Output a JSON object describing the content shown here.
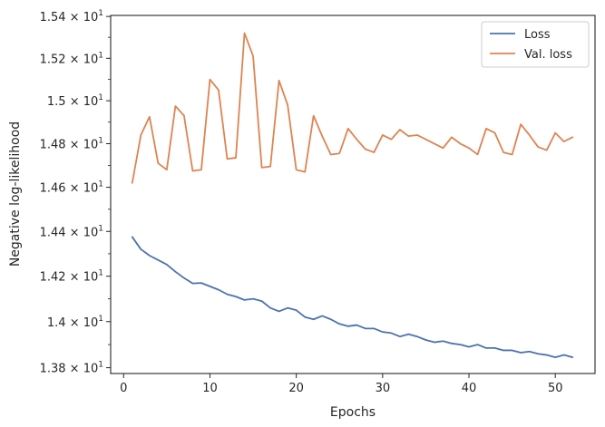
{
  "chart_data": {
    "type": "line",
    "title": "",
    "xlabel": "Epochs",
    "ylabel": "Negative log-likelihood",
    "xlim": [
      -1.5,
      54.6
    ],
    "ylim": [
      13.775,
      15.405
    ],
    "yscale": "log",
    "grid": false,
    "legend_position": "top-right",
    "x_ticks": [
      {
        "value": 0,
        "label": "0"
      },
      {
        "value": 10,
        "label": "10"
      },
      {
        "value": 20,
        "label": "20"
      },
      {
        "value": 30,
        "label": "30"
      },
      {
        "value": 40,
        "label": "40"
      },
      {
        "value": 50,
        "label": "50"
      }
    ],
    "y_ticks": [
      {
        "value": 13.8,
        "mantissa": "1.38",
        "base": "10",
        "exp": "1"
      },
      {
        "value": 14.0,
        "mantissa": "1.4",
        "base": "10",
        "exp": "1"
      },
      {
        "value": 14.2,
        "mantissa": "1.42",
        "base": "10",
        "exp": "1"
      },
      {
        "value": 14.4,
        "mantissa": "1.44",
        "base": "10",
        "exp": "1"
      },
      {
        "value": 14.6,
        "mantissa": "1.46",
        "base": "10",
        "exp": "1"
      },
      {
        "value": 14.8,
        "mantissa": "1.48",
        "base": "10",
        "exp": "1"
      },
      {
        "value": 15.0,
        "mantissa": "1.5",
        "base": "10",
        "exp": "1"
      },
      {
        "value": 15.2,
        "mantissa": "1.52",
        "base": "10",
        "exp": "1"
      },
      {
        "value": 15.4,
        "mantissa": "1.54",
        "base": "10",
        "exp": "1"
      }
    ],
    "x": [
      1,
      2,
      3,
      4,
      5,
      6,
      7,
      8,
      9,
      10,
      11,
      12,
      13,
      14,
      15,
      16,
      17,
      18,
      19,
      20,
      21,
      22,
      23,
      24,
      25,
      26,
      27,
      28,
      29,
      30,
      31,
      32,
      33,
      34,
      35,
      36,
      37,
      38,
      39,
      40,
      41,
      42,
      43,
      44,
      45,
      46,
      47,
      48,
      49,
      50,
      51,
      52
    ],
    "series": [
      {
        "name": "Loss",
        "color": "#4c72b0",
        "values": [
          14.375,
          14.32,
          14.292,
          14.272,
          14.252,
          14.22,
          14.192,
          14.168,
          14.17,
          14.155,
          14.14,
          14.12,
          14.11,
          14.095,
          14.1,
          14.09,
          14.06,
          14.045,
          14.06,
          14.05,
          14.02,
          14.01,
          14.025,
          14.01,
          13.99,
          13.98,
          13.985,
          13.97,
          13.97,
          13.955,
          13.95,
          13.935,
          13.945,
          13.935,
          13.92,
          13.91,
          13.915,
          13.905,
          13.9,
          13.89,
          13.9,
          13.885,
          13.885,
          13.875,
          13.875,
          13.865,
          13.87,
          13.86,
          13.855,
          13.845,
          13.855,
          13.845
        ]
      },
      {
        "name": "Val. loss",
        "color": "#dd8452",
        "values": [
          14.62,
          14.84,
          14.925,
          14.71,
          14.68,
          14.975,
          14.93,
          14.675,
          14.68,
          15.1,
          15.05,
          14.73,
          14.735,
          15.32,
          15.21,
          14.69,
          14.695,
          15.095,
          14.98,
          14.68,
          14.67,
          14.93,
          14.835,
          14.75,
          14.755,
          14.87,
          14.82,
          14.775,
          14.76,
          14.84,
          14.82,
          14.865,
          14.835,
          14.84,
          14.82,
          14.8,
          14.78,
          14.83,
          14.8,
          14.78,
          14.75,
          14.87,
          14.85,
          14.76,
          14.75,
          14.89,
          14.84,
          14.785,
          14.77,
          14.85,
          14.81,
          14.83
        ]
      }
    ]
  }
}
